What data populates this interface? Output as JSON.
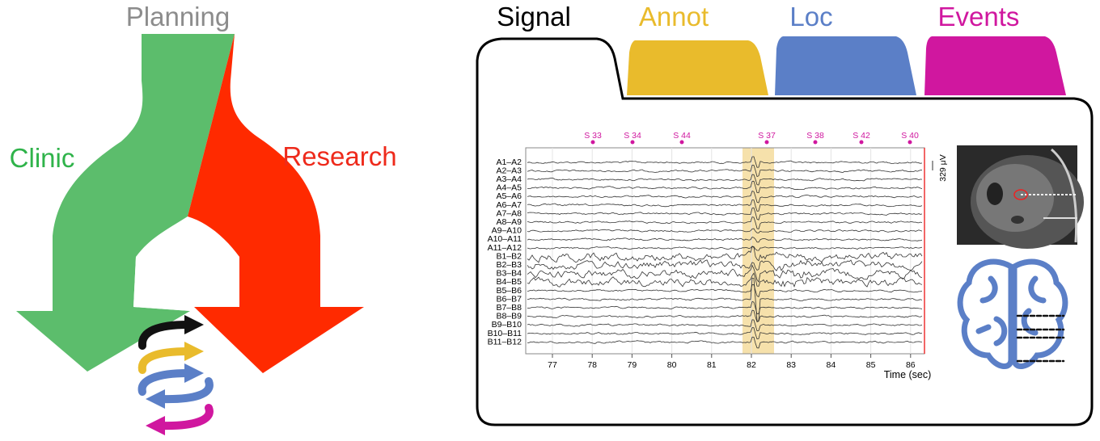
{
  "left": {
    "planning": "Planning",
    "clinic": "Clinic",
    "research": "Research"
  },
  "tabs": [
    "Signal",
    "Annot",
    "Loc",
    "Events"
  ],
  "eeg": {
    "channels": [
      "A1–A2",
      "A2–A3",
      "A3–A4",
      "A4–A5",
      "A5–A6",
      "A6–A7",
      "A7–A8",
      "A8–A9",
      "A9–A10",
      "A10–A11",
      "A11–A12",
      "B1–B2",
      "B2–B3",
      "B3–B4",
      "B4–B5",
      "B5–B6",
      "B6–B7",
      "B7–B8",
      "B8–B9",
      "B9–B10",
      "B10–B11",
      "B11–B12"
    ],
    "markers": [
      "S 33",
      "S 34",
      "S 44",
      "S 37",
      "S 38",
      "S 42",
      "S 40"
    ],
    "xticks": [
      77,
      78,
      79,
      80,
      81,
      82,
      83,
      84,
      85,
      86
    ],
    "xlabel": "Time (sec)",
    "scale": "329 μV"
  }
}
